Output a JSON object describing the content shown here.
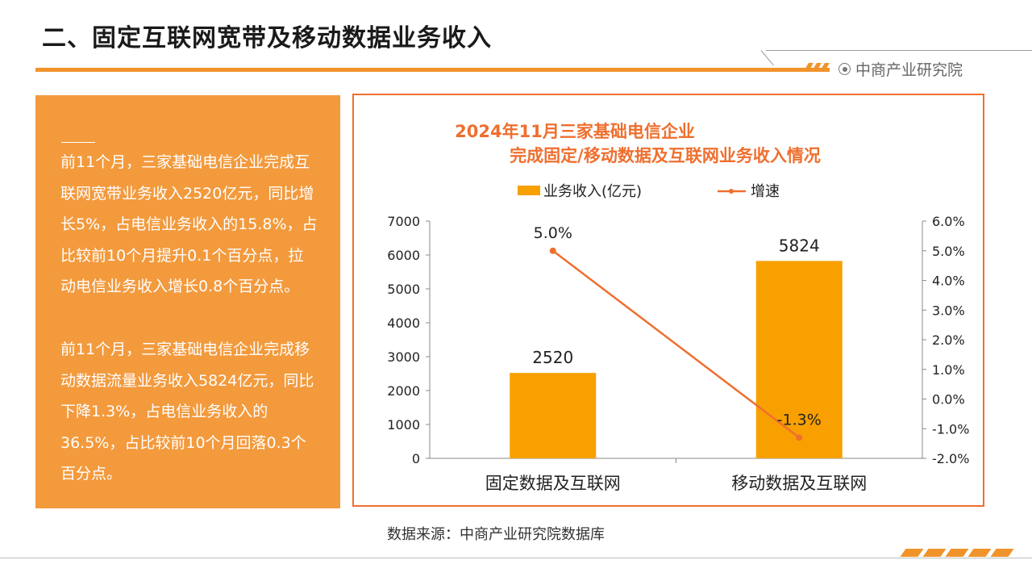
{
  "header": {
    "title": "二、固定互联网宽带及移动数据业务收入",
    "brand": "中商产业研究院"
  },
  "textbox": {
    "paragraph1": "前11个月，三家基础电信企业完成互联网宽带业务收入2520亿元，同比增长5%，占电信业务收入的15.8%，占比较前10个月提升0.1个百分点，拉动电信业务收入增长0.8个百分点。",
    "paragraph2": "前11个月，三家基础电信企业完成移动数据流量业务收入5824亿元，同比下降1.3%，占电信业务收入的36.5%，占比较前10个月回落0.3个百分点。"
  },
  "chart_data": {
    "type": "bar",
    "title": "2024年11月三家基础电信企业",
    "subtitle": "完成固定/移动数据及互联网业务收入情况",
    "categories": [
      "固定数据及互联网",
      "移动数据及互联网"
    ],
    "series": [
      {
        "name": "业务收入(亿元)",
        "type": "bar",
        "axis": "left",
        "values": [
          2520,
          5824
        ],
        "labels": [
          "2520",
          "5824"
        ],
        "color": "#f7a000"
      },
      {
        "name": "增速",
        "type": "line",
        "axis": "right",
        "values": [
          5.0,
          -1.3
        ],
        "labels": [
          "5.0%",
          "-1.3%"
        ],
        "color": "#ef6f2f"
      }
    ],
    "ylim_left": [
      0,
      7000
    ],
    "yticks_left": [
      "0",
      "1000",
      "2000",
      "3000",
      "4000",
      "5000",
      "6000",
      "7000"
    ],
    "ylim_right": [
      -2.0,
      6.0
    ],
    "yticks_right": [
      "-2.0%",
      "-1.0%",
      "0.0%",
      "1.0%",
      "2.0%",
      "3.0%",
      "4.0%",
      "5.0%",
      "6.0%"
    ],
    "legend_position": "top",
    "grid": false
  },
  "footer": {
    "source": "数据来源：中商产业研究院数据库"
  }
}
